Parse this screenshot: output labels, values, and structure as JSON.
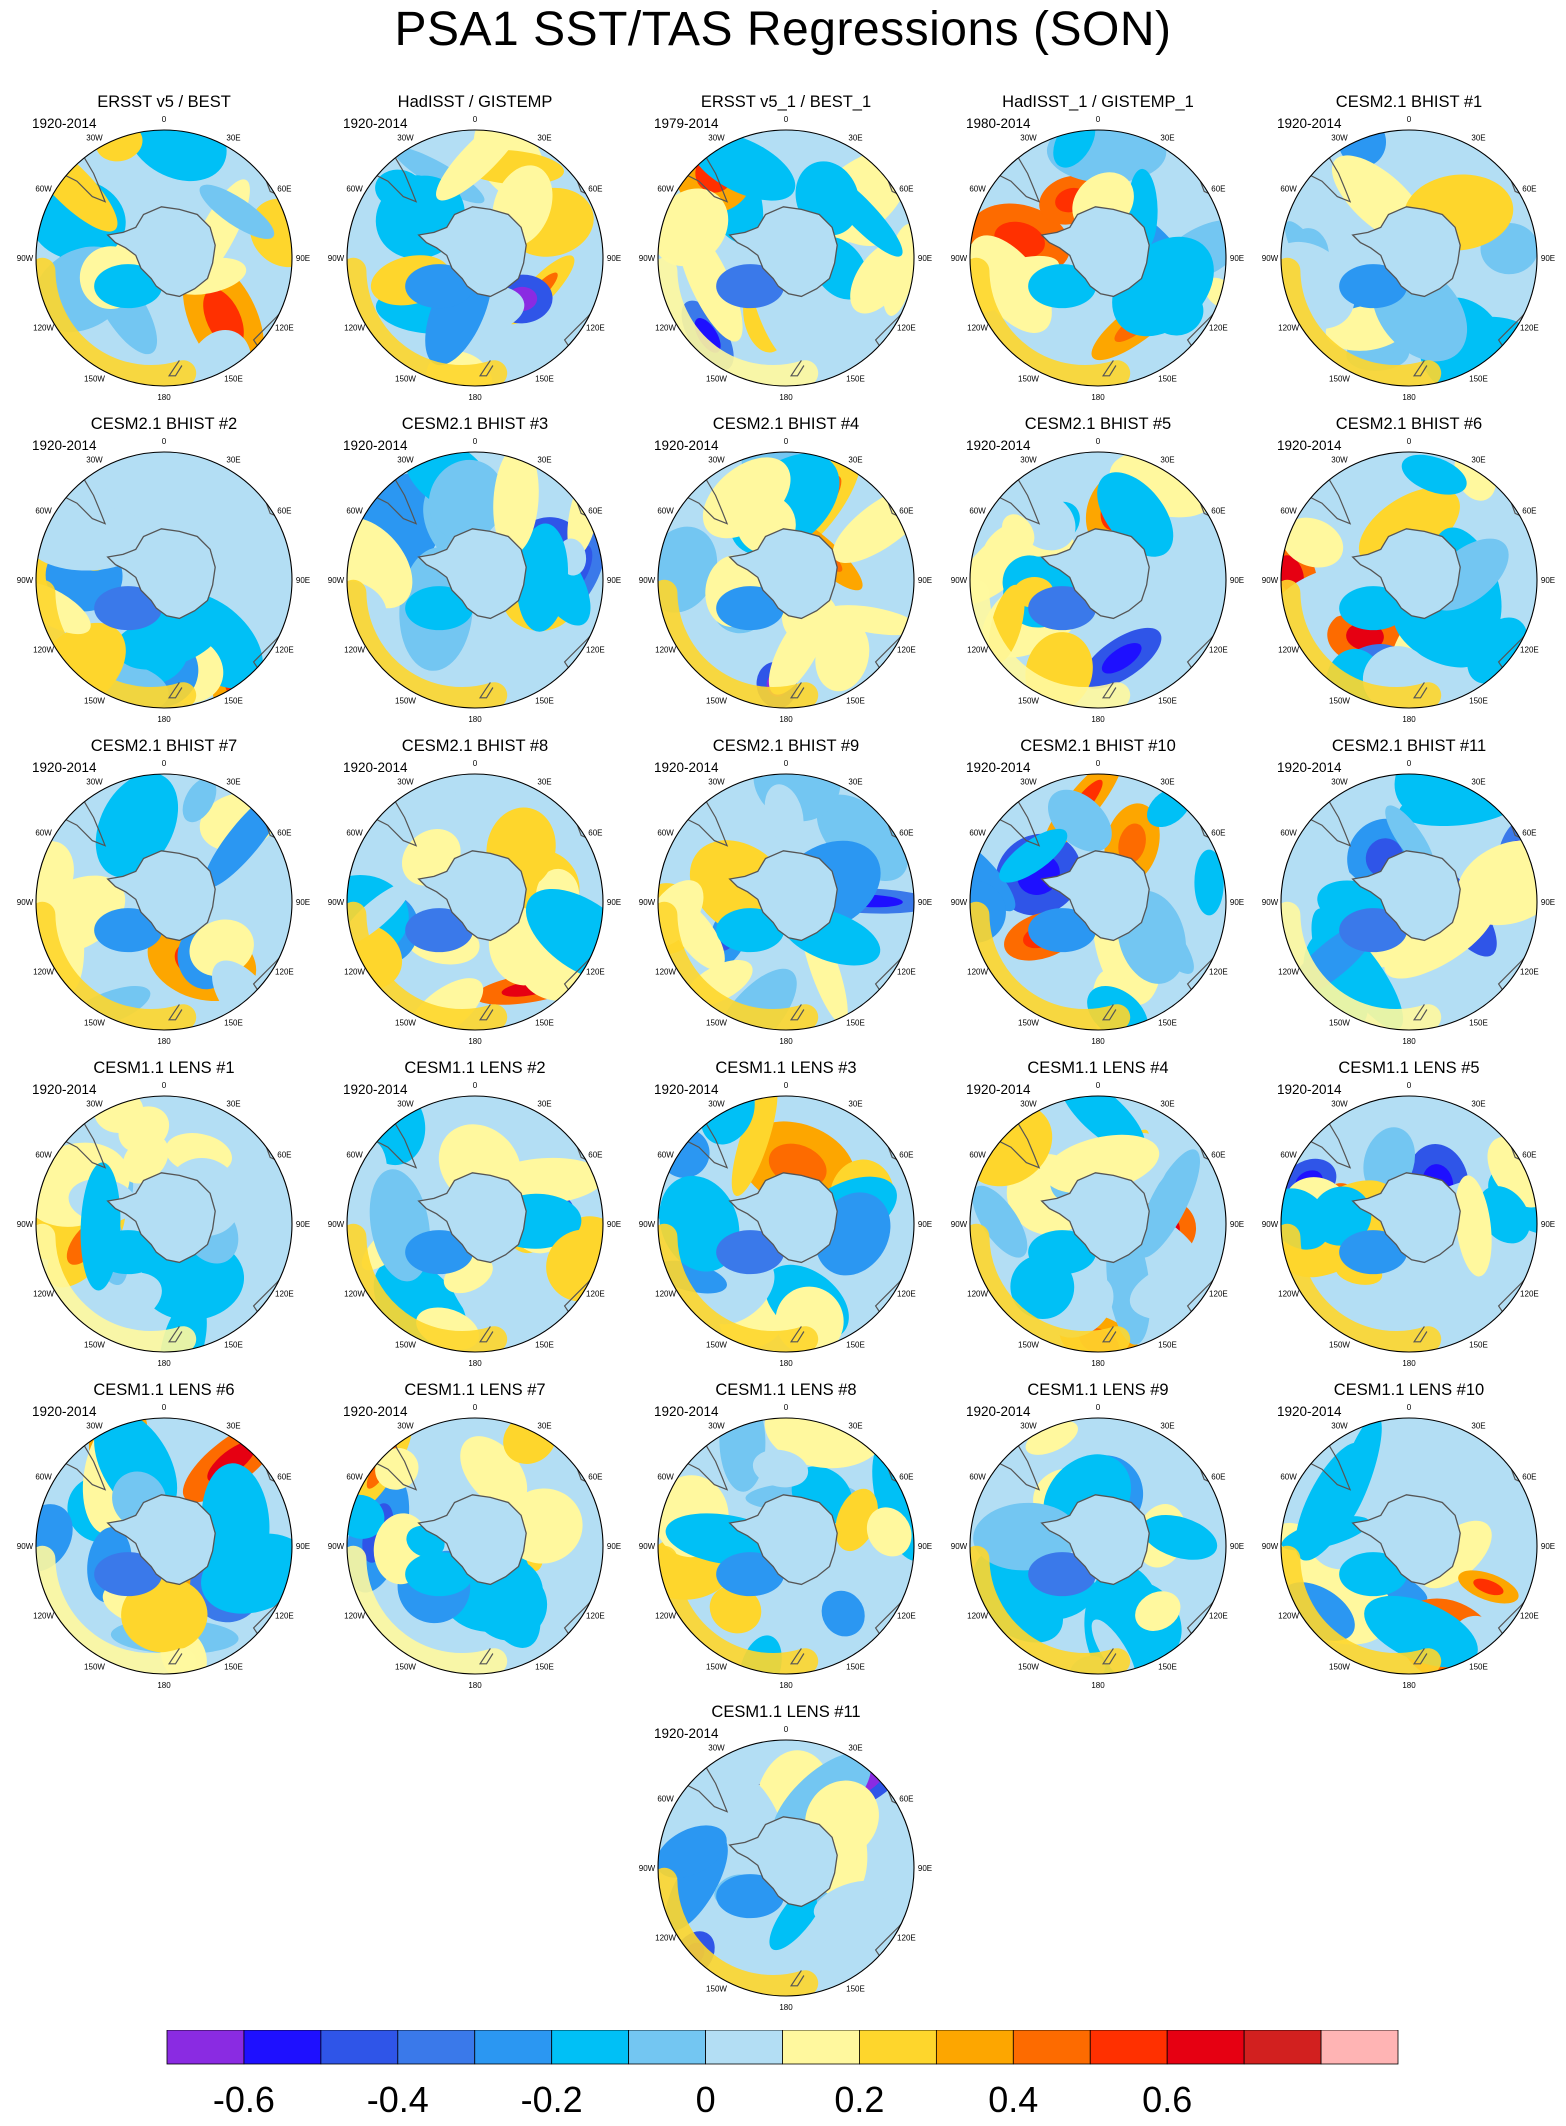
{
  "title": "PSA1 SST/TAS Regressions (SON)",
  "map_labels": {
    "longitude": [
      "0",
      "30E",
      "60E",
      "90E",
      "120E",
      "150E",
      "180",
      "150W",
      "120W",
      "90W",
      "60W",
      "30W"
    ]
  },
  "chart_data": {
    "type": "heatmap",
    "projection": "south polar stereographic, 0 at top, 180 at bottom",
    "colorbar": {
      "position": "bottom",
      "tick_labels": [
        "-0.6",
        "-0.4",
        "-0.2",
        "0",
        "0.2",
        "0.4",
        "0.6"
      ],
      "tick_values": [
        -0.6,
        -0.4,
        -0.2,
        0,
        0.2,
        0.4,
        0.6
      ],
      "bin_edges": [
        -0.7,
        -0.6,
        -0.5,
        -0.4,
        -0.3,
        -0.2,
        -0.1,
        0,
        0.1,
        0.2,
        0.3,
        0.4,
        0.5,
        0.6,
        0.7
      ],
      "colors": [
        "#8a2be2",
        "#1e10ff",
        "#2f55e8",
        "#3a79ea",
        "#2b97f2",
        "#00c0f6",
        "#73c6f2",
        "#b3def4",
        "#fff89e",
        "#fed62c",
        "#fda600",
        "#fd6b00",
        "#ff3000",
        "#e60012",
        "#d2201f",
        "#ffb4b4"
      ]
    },
    "panels": [
      {
        "title": "ERSST v5 / BEST",
        "period": "1920-2014"
      },
      {
        "title": "HadISST / GISTEMP",
        "period": "1920-2014"
      },
      {
        "title": "ERSST v5_1 / BEST_1",
        "period": "1979-2014"
      },
      {
        "title": "HadISST_1 / GISTEMP_1",
        "period": "1980-2014"
      },
      {
        "title": "CESM2.1 BHIST #1",
        "period": "1920-2014"
      },
      {
        "title": "CESM2.1 BHIST #2",
        "period": "1920-2014"
      },
      {
        "title": "CESM2.1 BHIST #3",
        "period": "1920-2014"
      },
      {
        "title": "CESM2.1 BHIST #4",
        "period": "1920-2014"
      },
      {
        "title": "CESM2.1 BHIST #5",
        "period": "1920-2014"
      },
      {
        "title": "CESM2.1 BHIST #6",
        "period": "1920-2014"
      },
      {
        "title": "CESM2.1 BHIST #7",
        "period": "1920-2014"
      },
      {
        "title": "CESM2.1 BHIST #8",
        "period": "1920-2014"
      },
      {
        "title": "CESM2.1 BHIST #9",
        "period": "1920-2014"
      },
      {
        "title": "CESM2.1 BHIST #10",
        "period": "1920-2014"
      },
      {
        "title": "CESM2.1 BHIST #11",
        "period": "1920-2014"
      },
      {
        "title": "CESM1.1 LENS #1",
        "period": "1920-2014"
      },
      {
        "title": "CESM1.1 LENS #2",
        "period": "1920-2014"
      },
      {
        "title": "CESM1.1 LENS #3",
        "period": "1920-2014"
      },
      {
        "title": "CESM1.1 LENS #4",
        "period": "1920-2014"
      },
      {
        "title": "CESM1.1 LENS #5",
        "period": "1920-2014"
      },
      {
        "title": "CESM1.1 LENS #6",
        "period": "1920-2014"
      },
      {
        "title": "CESM1.1 LENS #7",
        "period": "1920-2014"
      },
      {
        "title": "CESM1.1 LENS #8",
        "period": "1920-2014"
      },
      {
        "title": "CESM1.1 LENS #9",
        "period": "1920-2014"
      },
      {
        "title": "CESM1.1 LENS #10",
        "period": "1920-2014"
      },
      {
        "title": "CESM1.1 LENS #11",
        "period": "1920-2014"
      }
    ]
  }
}
